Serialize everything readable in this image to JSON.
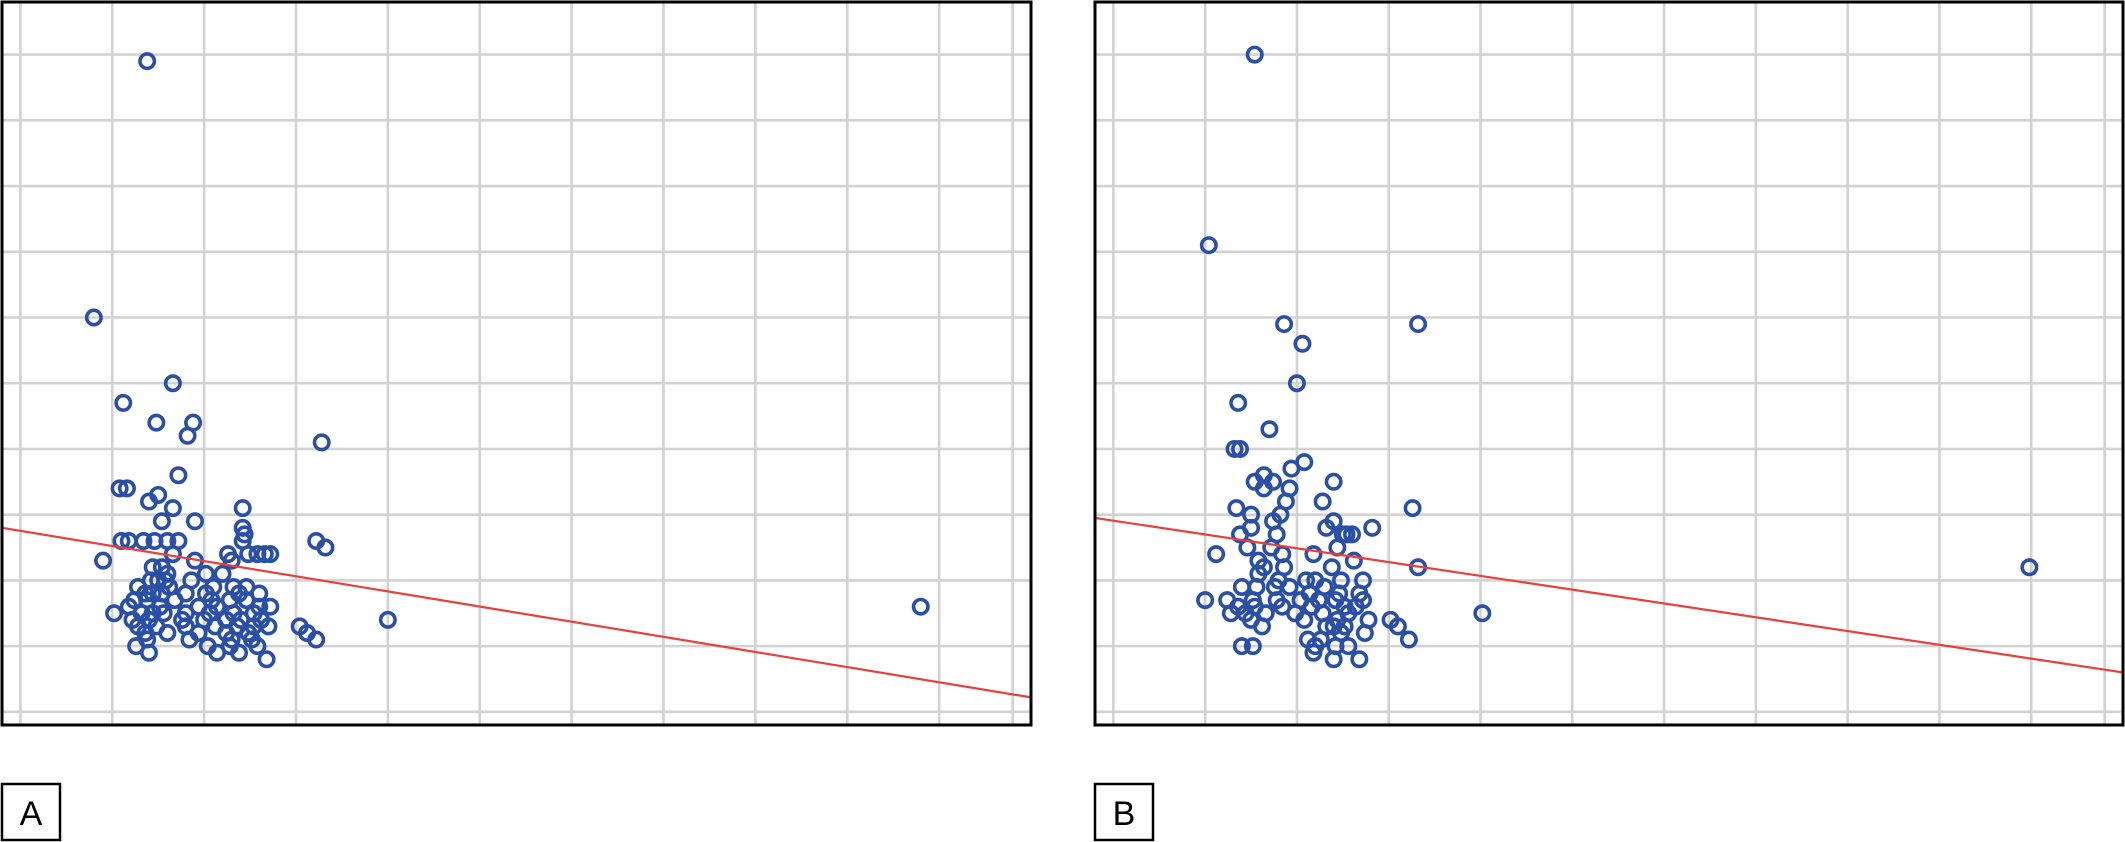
{
  "colors": {
    "points": "#2a4fa6",
    "fit_line": "#e8403a",
    "grid": "#d2d2d2",
    "frame": "#000000"
  },
  "chart_data": [
    {
      "type": "scatter",
      "panel_label": "A",
      "grid": true,
      "xlim": [
        0,
        56
      ],
      "ylim": [
        0,
        11
      ],
      "x_gridlines": [
        1,
        6,
        11,
        16,
        21,
        26,
        31,
        36,
        41,
        46,
        51,
        55
      ],
      "y_gridlines": [
        0.2,
        1.2,
        2.2,
        3.2,
        4.2,
        5.2,
        6.2,
        7.2,
        8.2,
        9.2,
        10.2
      ],
      "fit_line": [
        [
          0,
          3.0
        ],
        [
          56,
          0.42
        ]
      ],
      "points": [
        [
          7.9,
          10.1
        ],
        [
          5.0,
          6.2
        ],
        [
          9.3,
          5.2
        ],
        [
          6.6,
          4.9
        ],
        [
          8.4,
          4.6
        ],
        [
          10.4,
          4.6
        ],
        [
          10.1,
          4.4
        ],
        [
          17.4,
          4.3
        ],
        [
          9.6,
          3.8
        ],
        [
          6.4,
          3.6
        ],
        [
          6.8,
          3.6
        ],
        [
          8.0,
          3.4
        ],
        [
          8.5,
          3.5
        ],
        [
          9.3,
          3.3
        ],
        [
          13.1,
          3.3
        ],
        [
          8.7,
          3.1
        ],
        [
          10.5,
          3.1
        ],
        [
          13.1,
          3.0
        ],
        [
          13.2,
          2.9
        ],
        [
          6.5,
          2.8
        ],
        [
          6.9,
          2.8
        ],
        [
          7.7,
          2.8
        ],
        [
          8.3,
          2.8
        ],
        [
          9.0,
          2.8
        ],
        [
          9.6,
          2.8
        ],
        [
          13.1,
          2.8
        ],
        [
          17.1,
          2.8
        ],
        [
          17.6,
          2.7
        ],
        [
          9.3,
          2.6
        ],
        [
          12.3,
          2.6
        ],
        [
          13.4,
          2.6
        ],
        [
          13.9,
          2.6
        ],
        [
          14.3,
          2.6
        ],
        [
          14.6,
          2.6
        ],
        [
          10.5,
          2.5
        ],
        [
          12.5,
          2.5
        ],
        [
          5.5,
          2.5
        ],
        [
          8.2,
          2.4
        ],
        [
          8.7,
          2.4
        ],
        [
          9.0,
          2.3
        ],
        [
          11.1,
          2.3
        ],
        [
          12.0,
          2.3
        ],
        [
          8.1,
          2.2
        ],
        [
          8.5,
          2.2
        ],
        [
          8.9,
          2.2
        ],
        [
          10.3,
          2.2
        ],
        [
          7.4,
          2.1
        ],
        [
          9.1,
          2.1
        ],
        [
          11.5,
          2.1
        ],
        [
          12.6,
          2.1
        ],
        [
          13.3,
          2.1
        ],
        [
          7.8,
          2.0
        ],
        [
          8.2,
          2.0
        ],
        [
          8.7,
          2.0
        ],
        [
          10.0,
          2.0
        ],
        [
          11.1,
          2.0
        ],
        [
          12.9,
          2.0
        ],
        [
          14.0,
          2.0
        ],
        [
          7.2,
          1.9
        ],
        [
          7.9,
          1.9
        ],
        [
          9.4,
          1.9
        ],
        [
          11.4,
          1.9
        ],
        [
          12.4,
          1.9
        ],
        [
          13.3,
          1.9
        ],
        [
          6.9,
          1.8
        ],
        [
          8.6,
          1.8
        ],
        [
          10.7,
          1.8
        ],
        [
          11.7,
          1.8
        ],
        [
          14.0,
          1.8
        ],
        [
          14.6,
          1.8
        ],
        [
          50.0,
          1.8
        ],
        [
          6.1,
          1.7
        ],
        [
          7.6,
          1.7
        ],
        [
          8.2,
          1.7
        ],
        [
          8.8,
          1.7
        ],
        [
          10.0,
          1.7
        ],
        [
          11.3,
          1.7
        ],
        [
          12.6,
          1.7
        ],
        [
          13.7,
          1.7
        ],
        [
          21.0,
          1.6
        ],
        [
          7.1,
          1.6
        ],
        [
          8.0,
          1.6
        ],
        [
          9.8,
          1.6
        ],
        [
          11.0,
          1.6
        ],
        [
          12.2,
          1.6
        ],
        [
          13.0,
          1.6
        ],
        [
          14.1,
          1.6
        ],
        [
          7.4,
          1.5
        ],
        [
          8.4,
          1.5
        ],
        [
          10.0,
          1.5
        ],
        [
          11.6,
          1.5
        ],
        [
          12.8,
          1.5
        ],
        [
          13.7,
          1.5
        ],
        [
          14.5,
          1.5
        ],
        [
          16.2,
          1.5
        ],
        [
          7.8,
          1.4
        ],
        [
          9.0,
          1.4
        ],
        [
          10.7,
          1.4
        ],
        [
          12.2,
          1.4
        ],
        [
          13.4,
          1.4
        ],
        [
          16.6,
          1.4
        ],
        [
          7.9,
          1.3
        ],
        [
          10.2,
          1.3
        ],
        [
          12.5,
          1.3
        ],
        [
          13.6,
          1.3
        ],
        [
          17.1,
          1.3
        ],
        [
          7.3,
          1.2
        ],
        [
          8.0,
          1.1
        ],
        [
          11.2,
          1.2
        ],
        [
          12.4,
          1.2
        ],
        [
          12.9,
          1.1
        ],
        [
          11.7,
          1.1
        ],
        [
          13.9,
          1.2
        ],
        [
          14.4,
          1.0
        ]
      ]
    },
    {
      "type": "scatter",
      "panel_label": "B",
      "grid": true,
      "xlim": [
        0,
        56
      ],
      "ylim": [
        0,
        11
      ],
      "x_gridlines": [
        1,
        6,
        11,
        16,
        21,
        26,
        31,
        36,
        41,
        46,
        51,
        55
      ],
      "y_gridlines": [
        0.2,
        1.2,
        2.2,
        3.2,
        4.2,
        5.2,
        6.2,
        7.2,
        8.2,
        9.2,
        10.2
      ],
      "fit_line": [
        [
          0,
          3.15
        ],
        [
          56,
          0.8
        ]
      ],
      "points": [
        [
          8.7,
          10.2
        ],
        [
          6.2,
          7.3
        ],
        [
          10.3,
          6.1
        ],
        [
          17.6,
          6.1
        ],
        [
          11.3,
          5.8
        ],
        [
          11.0,
          5.2
        ],
        [
          7.8,
          4.9
        ],
        [
          9.5,
          4.5
        ],
        [
          7.6,
          4.2
        ],
        [
          7.9,
          4.2
        ],
        [
          11.4,
          4.0
        ],
        [
          10.7,
          3.9
        ],
        [
          9.2,
          3.8
        ],
        [
          9.7,
          3.7
        ],
        [
          8.7,
          3.7
        ],
        [
          9.2,
          3.6
        ],
        [
          10.6,
          3.6
        ],
        [
          13.0,
          3.7
        ],
        [
          7.7,
          3.3
        ],
        [
          8.5,
          3.2
        ],
        [
          10.1,
          3.2
        ],
        [
          10.4,
          3.4
        ],
        [
          12.4,
          3.4
        ],
        [
          17.3,
          3.3
        ],
        [
          9.7,
          3.1
        ],
        [
          8.5,
          3.0
        ],
        [
          12.6,
          3.0
        ],
        [
          13.0,
          3.1
        ],
        [
          13.5,
          2.9
        ],
        [
          14.0,
          2.9
        ],
        [
          15.1,
          3.0
        ],
        [
          7.9,
          2.9
        ],
        [
          9.9,
          2.9
        ],
        [
          13.7,
          2.9
        ],
        [
          6.6,
          2.6
        ],
        [
          8.3,
          2.7
        ],
        [
          9.6,
          2.7
        ],
        [
          10.2,
          2.6
        ],
        [
          11.9,
          2.6
        ],
        [
          13.2,
          2.7
        ],
        [
          17.6,
          2.4
        ],
        [
          8.9,
          2.5
        ],
        [
          9.2,
          2.4
        ],
        [
          10.3,
          2.4
        ],
        [
          12.9,
          2.4
        ],
        [
          14.1,
          2.5
        ],
        [
          8.9,
          2.3
        ],
        [
          10.0,
          2.2
        ],
        [
          11.5,
          2.2
        ],
        [
          12.0,
          2.2
        ],
        [
          13.4,
          2.2
        ],
        [
          14.6,
          2.2
        ],
        [
          50.9,
          2.4
        ],
        [
          8.0,
          2.1
        ],
        [
          8.8,
          2.1
        ],
        [
          9.8,
          2.1
        ],
        [
          10.6,
          2.1
        ],
        [
          11.7,
          2.0
        ],
        [
          12.5,
          2.1
        ],
        [
          13.3,
          2.0
        ],
        [
          14.4,
          2.0
        ],
        [
          14.6,
          1.9
        ],
        [
          6.0,
          1.9
        ],
        [
          7.2,
          1.9
        ],
        [
          8.6,
          1.9
        ],
        [
          9.9,
          1.9
        ],
        [
          11.2,
          1.9
        ],
        [
          12.2,
          1.9
        ],
        [
          13.1,
          1.9
        ],
        [
          7.8,
          1.8
        ],
        [
          8.7,
          1.8
        ],
        [
          10.2,
          1.8
        ],
        [
          11.8,
          1.8
        ],
        [
          13.6,
          1.8
        ],
        [
          14.2,
          1.8
        ],
        [
          21.1,
          1.7
        ],
        [
          7.4,
          1.7
        ],
        [
          8.2,
          1.7
        ],
        [
          9.3,
          1.7
        ],
        [
          10.9,
          1.7
        ],
        [
          12.4,
          1.7
        ],
        [
          13.8,
          1.7
        ],
        [
          16.1,
          1.6
        ],
        [
          8.5,
          1.6
        ],
        [
          11.4,
          1.6
        ],
        [
          13.2,
          1.6
        ],
        [
          16.5,
          1.5
        ],
        [
          14.9,
          1.6
        ],
        [
          9.1,
          1.5
        ],
        [
          12.6,
          1.5
        ],
        [
          13.0,
          1.5
        ],
        [
          13.6,
          1.5
        ],
        [
          14.7,
          1.4
        ],
        [
          11.6,
          1.3
        ],
        [
          12.3,
          1.3
        ],
        [
          13.4,
          1.4
        ],
        [
          17.1,
          1.3
        ],
        [
          12.0,
          1.2
        ],
        [
          13.1,
          1.2
        ],
        [
          8.0,
          1.2
        ],
        [
          8.6,
          1.2
        ],
        [
          11.9,
          1.1
        ],
        [
          13.8,
          1.2
        ],
        [
          13.0,
          1.0
        ],
        [
          14.4,
          1.0
        ]
      ]
    }
  ]
}
